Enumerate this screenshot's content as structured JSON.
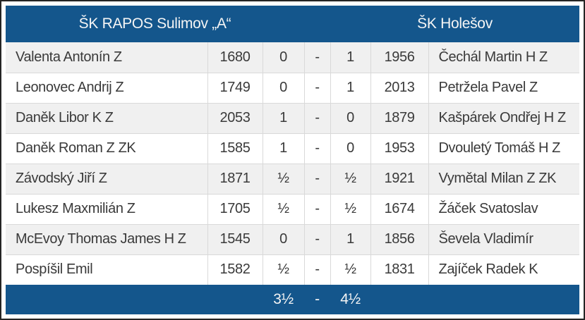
{
  "colors": {
    "header_bg": "#14568C",
    "outer_border": "#252525",
    "alt_row_bg": "#f0f0f0",
    "grid_line": "#d9d9d9",
    "cell_text": "#3a3a3a",
    "header_text": "#f5f5f5"
  },
  "match": {
    "home_team": "ŠK RAPOS Sulimov „A“",
    "away_team": "ŠK Holešov",
    "total": {
      "home": "3½",
      "separator": "-",
      "away": "4½"
    },
    "boards": [
      {
        "home_player": "Valenta Antonín Z",
        "home_rating": "1680",
        "home_score": "0",
        "separator": "-",
        "away_score": "1",
        "away_rating": "1956",
        "away_player": "Čechál Martin H Z"
      },
      {
        "home_player": "Leonovec Andrij Z",
        "home_rating": "1749",
        "home_score": "0",
        "separator": "-",
        "away_score": "1",
        "away_rating": "2013",
        "away_player": "Petržela Pavel Z"
      },
      {
        "home_player": "Daněk Libor K Z",
        "home_rating": "2053",
        "home_score": "1",
        "separator": "-",
        "away_score": "0",
        "away_rating": "1879",
        "away_player": "Kašpárek Ondřej H Z"
      },
      {
        "home_player": "Daněk Roman Z ZK",
        "home_rating": "1585",
        "home_score": "1",
        "separator": "-",
        "away_score": "0",
        "away_rating": "1953",
        "away_player": "Dvouletý Tomáš H Z"
      },
      {
        "home_player": "Závodský Jiří Z",
        "home_rating": "1871",
        "home_score": "½",
        "separator": "-",
        "away_score": "½",
        "away_rating": "1921",
        "away_player": "Vymětal Milan Z ZK"
      },
      {
        "home_player": "Lukesz Maxmilián Z",
        "home_rating": "1705",
        "home_score": "½",
        "separator": "-",
        "away_score": "½",
        "away_rating": "1674",
        "away_player": "Žáček Svatoslav"
      },
      {
        "home_player": "McEvoy Thomas James H Z",
        "home_rating": "1545",
        "home_score": "0",
        "separator": "-",
        "away_score": "1",
        "away_rating": "1856",
        "away_player": "Ševela Vladimír"
      },
      {
        "home_player": "Pospíšil Emil",
        "home_rating": "1582",
        "home_score": "½",
        "separator": "-",
        "away_score": "½",
        "away_rating": "1831",
        "away_player": "Zajíček Radek K"
      }
    ]
  }
}
